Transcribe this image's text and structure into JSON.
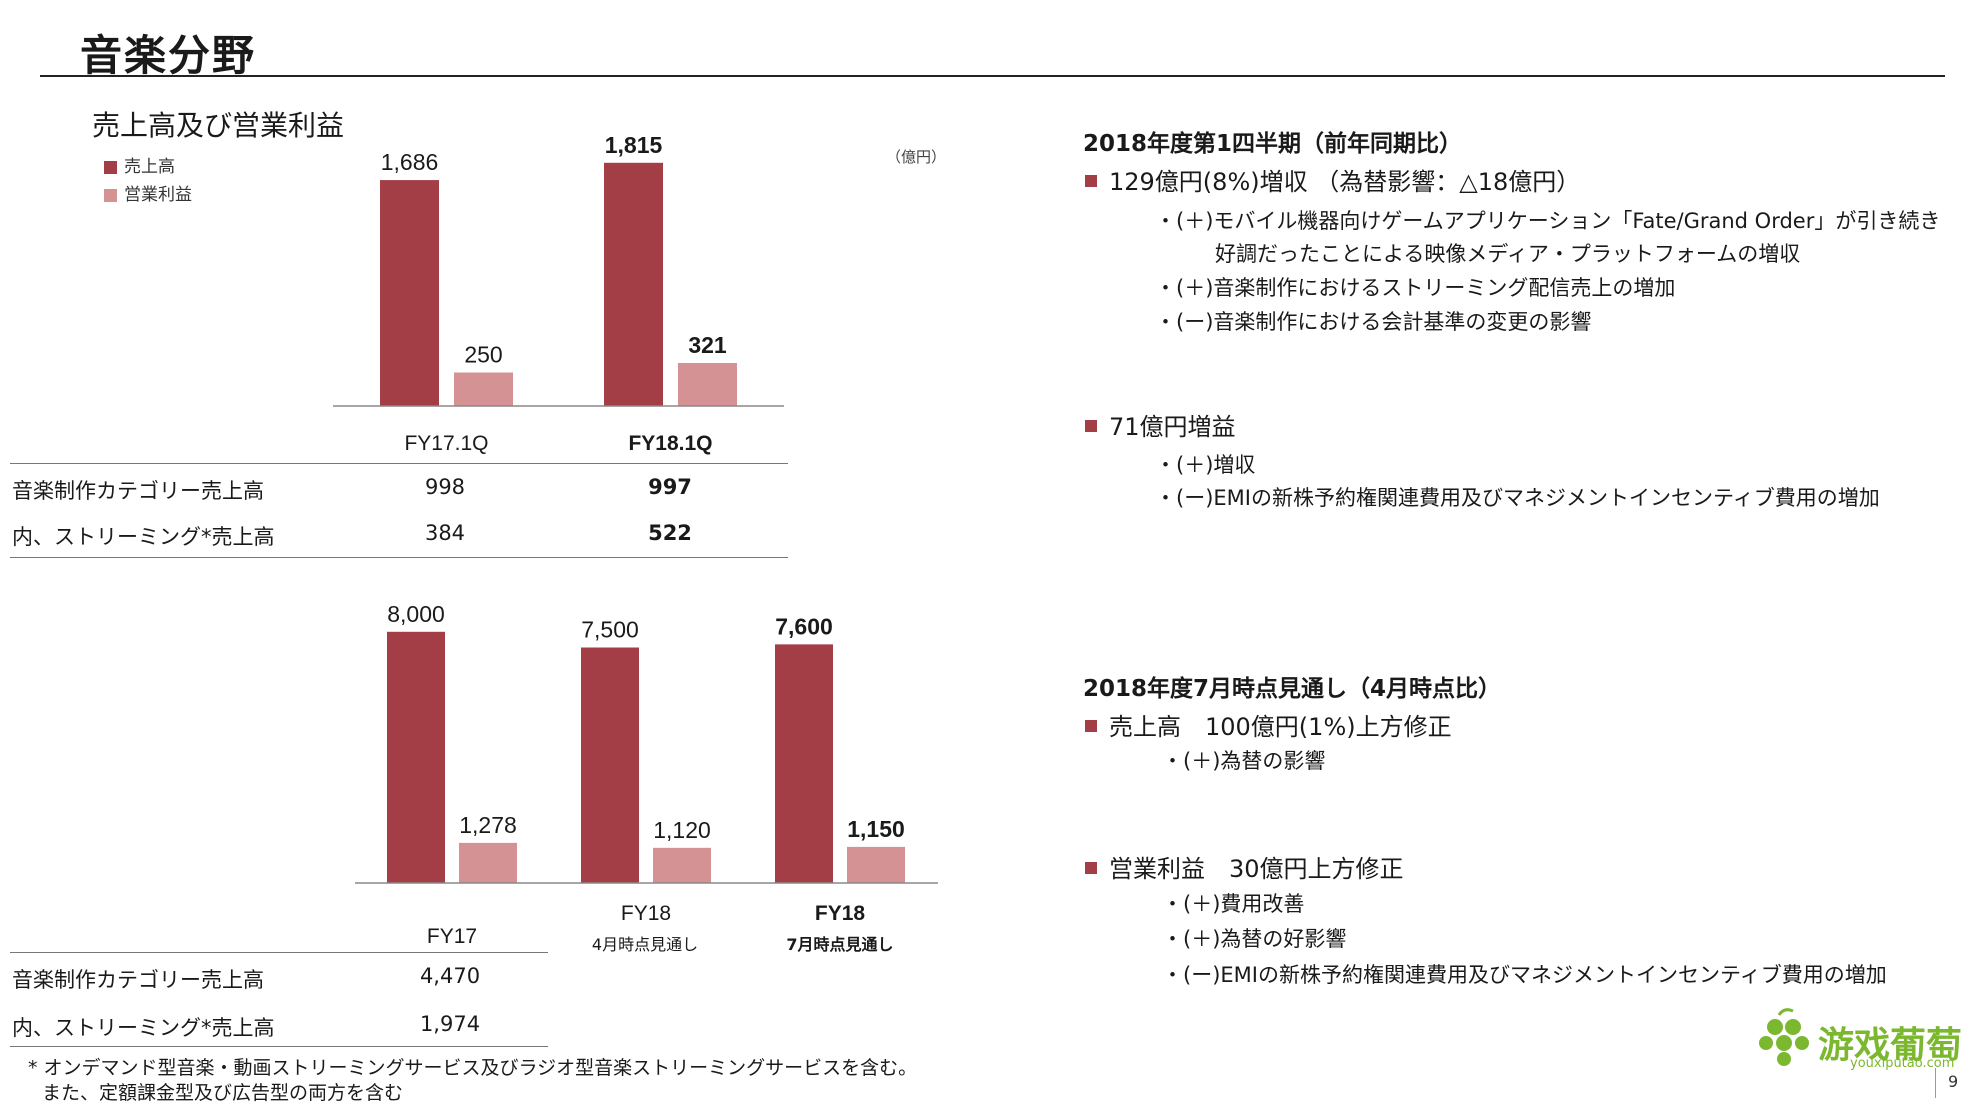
{
  "page": {
    "title": "音楽分野",
    "page_number": "9"
  },
  "chart_top": {
    "subtitle": "売上高及び営業利益",
    "unit": "（億円）",
    "legend": [
      "売上高",
      "営業利益"
    ],
    "table_rows": [
      {
        "label": "音楽制作カテゴリー売上高",
        "values": [
          "998",
          "997"
        ]
      },
      {
        "label": "内、ストリーミング*売上高",
        "values": [
          "384",
          "522"
        ]
      }
    ]
  },
  "chart_bottom": {
    "table_rows": [
      {
        "label": "音楽制作カテゴリー売上高",
        "values": [
          "4,470"
        ]
      },
      {
        "label": "内、ストリーミング*売上高",
        "values": [
          "1,974"
        ]
      }
    ],
    "category_sublabels": [
      "",
      "4月時点見通し",
      "7月時点見通し"
    ]
  },
  "footnote": {
    "line1": "* オンデマンド型音楽・動画ストリーミングサービス及びラジオ型音楽ストリーミングサービスを含む。",
    "line2": "また、定額課金型及び広告型の両方を含む"
  },
  "chart_data": [
    {
      "type": "bar",
      "categories": [
        "FY17.1Q",
        "FY18.1Q"
      ],
      "series": [
        {
          "name": "売上高",
          "values": [
            1686,
            1815
          ]
        },
        {
          "name": "営業利益",
          "values": [
            250,
            321
          ]
        }
      ],
      "value_labels": [
        [
          "1,686",
          "1,815"
        ],
        [
          "250",
          "321"
        ]
      ],
      "bold_category_index": 1,
      "legend_position": "top-left",
      "colors": [
        "#a33e46",
        "#d49294"
      ],
      "grid": false
    },
    {
      "type": "bar",
      "categories": [
        "FY17",
        "FY18",
        "FY18"
      ],
      "series": [
        {
          "name": "売上高",
          "values": [
            8000,
            7500,
            7600
          ]
        },
        {
          "name": "営業利益",
          "values": [
            1278,
            1120,
            1150
          ]
        }
      ],
      "value_labels": [
        [
          "8,000",
          "7,500",
          "7,600"
        ],
        [
          "1,278",
          "1,120",
          "1,150"
        ]
      ],
      "bold_category_index": 2,
      "colors": [
        "#a33e46",
        "#d49294"
      ],
      "grid": false
    }
  ],
  "right_panel": {
    "section1": {
      "heading": "2018年度第1四半期（前年同期比）",
      "bullet1": "129億円(8%)増収 （為替影響：△18億円）",
      "bullet1_items": [
        "・(＋)モバイル機器向けゲームアプリケーション「Fate/Grand Order」が引き続き",
        "好調だったことによる映像メディア・プラットフォームの増収",
        "・(＋)音楽制作におけるストリーミング配信売上の増加",
        "・(ー)音楽制作における会計基準の変更の影響"
      ],
      "bullet2": "71億円増益",
      "bullet2_items": [
        "・(＋)増収",
        "・(ー)EMIの新株予約権関連費用及びマネジメントインセンティブ費用の増加"
      ]
    },
    "section2": {
      "heading": "2018年度7月時点見通し（4月時点比）",
      "bullet1": "売上高　100億円(1%)上方修正",
      "bullet1_items": [
        "・(＋)為替の影響"
      ],
      "bullet2": "営業利益　30億円上方修正",
      "bullet2_items": [
        "・(＋)費用改善",
        "・(＋)為替の好影響",
        "・(ー)EMIの新株予約権関連費用及びマネジメントインセンティブ費用の増加"
      ]
    }
  },
  "logo": {
    "text": "游戏葡萄",
    "url": "youxiputao.com",
    "color": "#7cb82f"
  }
}
